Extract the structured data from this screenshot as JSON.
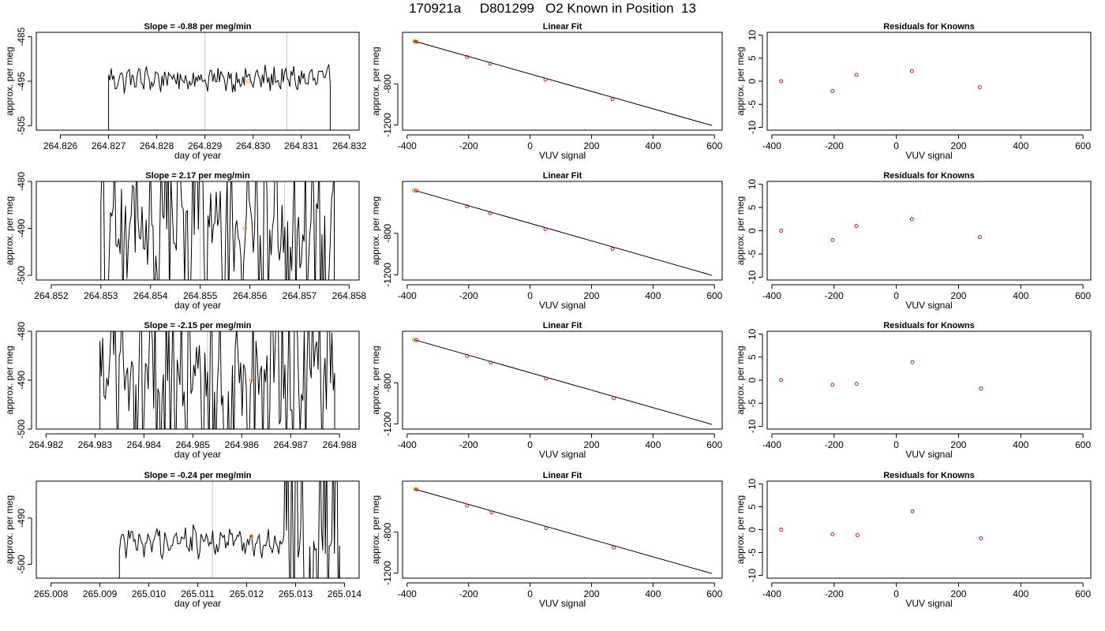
{
  "main_title": "170921a     D801299   O2 Known in Position  13",
  "chart_data": [
    {
      "type": "line",
      "title": "Slope =  -0.88  per meg/min",
      "xlabel": "day of year",
      "ylabel": "approx. per meg",
      "xlim": [
        264.8255,
        264.8322
      ],
      "ylim": [
        -506,
        -484
      ],
      "xticks": [
        "264.826",
        "264.827",
        "264.828",
        "264.829",
        "264.830",
        "264.831",
        "264.832"
      ],
      "yticks": [
        "-485",
        "-495",
        "-505"
      ],
      "vlines": [
        264.829,
        264.8307
      ],
      "highlight_point": [
        264.8299,
        -495.0
      ],
      "trace": {
        "x_start": 264.827,
        "x_end": 264.8316,
        "mean": -494.5,
        "amplitude": 2.2,
        "clip": true
      }
    },
    {
      "type": "scatter",
      "title": "Linear Fit",
      "xlabel": "VUV signal",
      "ylabel": "approx. per meg",
      "xlim": [
        -415,
        625
      ],
      "ylim": [
        -1250,
        -300
      ],
      "xticks": [
        "-400",
        "-200",
        "0",
        "200",
        "400",
        "600"
      ],
      "yticks": [
        "-800",
        "-1200"
      ],
      "points": [
        [
          -375,
          -388
        ],
        [
          -370,
          -392
        ],
        [
          -205,
          -540
        ],
        [
          -130,
          -605
        ],
        [
          50,
          -760
        ],
        [
          268,
          -950
        ]
      ],
      "highlight_points": [
        [
          -373,
          -388
        ]
      ],
      "fit_line": [
        [
          -375,
          -387
        ],
        [
          592,
          -1205
        ]
      ]
    },
    {
      "type": "scatter",
      "title": "Residuals for Knowns",
      "xlabel": "VUV signal",
      "ylabel": "approx. per meg",
      "xlim": [
        -415,
        625
      ],
      "ylim": [
        -10.6,
        10.6
      ],
      "xticks": [
        "-400",
        "-200",
        "0",
        "200",
        "400",
        "600"
      ],
      "yticks": [
        "10",
        "5",
        "0",
        "-5",
        "-10"
      ],
      "points": [
        [
          -370,
          0.0
        ],
        [
          -205,
          -2.1
        ],
        [
          -128,
          1.4
        ],
        [
          50,
          2.2
        ],
        [
          268,
          -1.3
        ]
      ]
    },
    {
      "type": "line",
      "title": "Slope =  2.17  per meg/min",
      "xlabel": "day of year",
      "ylabel": "approx. per meg",
      "xlim": [
        264.8517,
        264.8582
      ],
      "ylim": [
        -501,
        -480
      ],
      "xticks": [
        "264.852",
        "264.853",
        "264.854",
        "264.855",
        "264.856",
        "264.857",
        "264.858"
      ],
      "yticks": [
        "-480",
        "-490",
        "-500"
      ],
      "vlines": [
        264.855,
        264.8567
      ],
      "highlight_point": [
        264.8559,
        -490.0
      ],
      "trace": {
        "x_start": 264.853,
        "x_end": 264.8577,
        "mean": -490.0,
        "amplitude": 7.5,
        "clip": true
      }
    },
    {
      "type": "scatter",
      "title": "Linear Fit",
      "xlabel": "VUV signal",
      "ylabel": "approx. per meg",
      "xlim": [
        -415,
        625
      ],
      "ylim": [
        -1250,
        -300
      ],
      "xticks": [
        "-400",
        "-200",
        "0",
        "200",
        "400",
        "600"
      ],
      "yticks": [
        "-800",
        "-1200"
      ],
      "points": [
        [
          -378,
          -385
        ],
        [
          -370,
          -390
        ],
        [
          -205,
          -540
        ],
        [
          -130,
          -605
        ],
        [
          50,
          -760
        ],
        [
          268,
          -950
        ]
      ],
      "highlight_points": [
        [
          -378,
          -385
        ]
      ],
      "fit_line": [
        [
          -378,
          -384
        ],
        [
          592,
          -1205
        ]
      ]
    },
    {
      "type": "scatter",
      "title": "Residuals for Knowns",
      "xlabel": "VUV signal",
      "ylabel": "approx. per meg",
      "xlim": [
        -415,
        625
      ],
      "ylim": [
        -10.6,
        10.6
      ],
      "xticks": [
        "-400",
        "-200",
        "0",
        "200",
        "400",
        "600"
      ],
      "yticks": [
        "10",
        "5",
        "0",
        "-5",
        "-10"
      ],
      "points": [
        [
          -370,
          0.0
        ],
        [
          -205,
          -2.0
        ],
        [
          -128,
          1.0
        ],
        [
          50,
          2.5
        ],
        [
          268,
          -1.4
        ]
      ]
    },
    {
      "type": "line",
      "title": "Slope =  -2.15  per meg/min",
      "xlabel": "day of year",
      "ylabel": "approx. per meg",
      "xlim": [
        264.9818,
        264.9884
      ],
      "ylim": [
        -500,
        -480
      ],
      "xticks": [
        "264.982",
        "264.983",
        "264.984",
        "264.985",
        "264.986",
        "264.987",
        "264.988"
      ],
      "yticks": [
        "-480",
        "-490",
        "-500"
      ],
      "vlines": [
        264.9853
      ],
      "highlight_point": [
        264.9862,
        -490.0
      ],
      "trace": {
        "x_start": 264.9831,
        "x_end": 264.9879,
        "mean": -489.0,
        "amplitude": 8.0,
        "clip": true
      }
    },
    {
      "type": "scatter",
      "title": "Linear Fit",
      "xlabel": "VUV signal",
      "ylabel": "approx. per meg",
      "xlim": [
        -415,
        625
      ],
      "ylim": [
        -1250,
        -300
      ],
      "xticks": [
        "-400",
        "-200",
        "0",
        "200",
        "400",
        "600"
      ],
      "yticks": [
        "-800",
        "-1200"
      ],
      "points": [
        [
          -378,
          -382
        ],
        [
          -370,
          -387
        ],
        [
          -205,
          -540
        ],
        [
          -128,
          -605
        ],
        [
          52,
          -760
        ],
        [
          272,
          -950
        ]
      ],
      "highlight_points": [
        [
          -378,
          -382
        ]
      ],
      "fit_line": [
        [
          -378,
          -381
        ],
        [
          592,
          -1205
        ]
      ]
    },
    {
      "type": "scatter",
      "title": "Residuals for Knowns",
      "xlabel": "VUV signal",
      "ylabel": "approx. per meg",
      "xlim": [
        -415,
        625
      ],
      "ylim": [
        -10.6,
        10.6
      ],
      "xticks": [
        "-400",
        "-200",
        "0",
        "200",
        "400",
        "600"
      ],
      "yticks": [
        "10",
        "5",
        "0",
        "-5",
        "-10"
      ],
      "points": [
        [
          -370,
          0.0
        ],
        [
          -205,
          -1.0
        ],
        [
          -128,
          -0.8
        ],
        [
          52,
          3.9
        ],
        [
          272,
          -1.8
        ]
      ]
    },
    {
      "type": "line",
      "title": "Slope =  -0.24  per meg/min",
      "xlabel": "day of year",
      "ylabel": "approx. per meg",
      "xlim": [
        265.0077,
        265.0143
      ],
      "ylim": [
        -503,
        -482
      ],
      "xticks": [
        "265.008",
        "265.009",
        "265.010",
        "265.011",
        "265.012",
        "265.013",
        "265.014"
      ],
      "yticks": [
        "-490",
        "-500"
      ],
      "vlines": [
        265.0113
      ],
      "highlight_point": [
        265.0121,
        -494.0
      ],
      "trace": {
        "x_start": 265.0094,
        "x_end": 265.0139,
        "mean": -495.0,
        "amplitude": 2.5,
        "clip": true
      }
    },
    {
      "type": "scatter",
      "title": "Linear Fit",
      "xlabel": "VUV signal",
      "ylabel": "approx. per meg",
      "xlim": [
        -415,
        625
      ],
      "ylim": [
        -1250,
        -300
      ],
      "xticks": [
        "-400",
        "-200",
        "0",
        "200",
        "400",
        "600"
      ],
      "yticks": [
        "-800",
        "-1200"
      ],
      "points": [
        [
          -373,
          -380
        ],
        [
          -370,
          -383
        ],
        [
          -205,
          -540
        ],
        [
          -125,
          -605
        ],
        [
          52,
          -760
        ],
        [
          272,
          -950
        ]
      ],
      "highlight_points": [
        [
          -373,
          -380
        ]
      ],
      "fit_line": [
        [
          -373,
          -380
        ],
        [
          592,
          -1205
        ]
      ]
    },
    {
      "type": "scatter",
      "title": "Residuals for Knowns",
      "xlabel": "VUV signal",
      "ylabel": "approx. per meg",
      "xlim": [
        -415,
        625
      ],
      "ylim": [
        -10.6,
        10.6
      ],
      "xticks": [
        "-400",
        "-200",
        "0",
        "200",
        "400",
        "600"
      ],
      "yticks": [
        "10",
        "5",
        "0",
        "-5",
        "-10"
      ],
      "points": [
        [
          -370,
          0.0
        ],
        [
          -205,
          -1.0
        ],
        [
          -125,
          -1.2
        ],
        [
          52,
          4.0
        ],
        [
          272,
          -1.9
        ]
      ]
    }
  ],
  "colors": {
    "axis": "#000000",
    "trace": "#000000",
    "vline": "#c8c8c8",
    "point": "#cc0000",
    "highlight": "#ff9900",
    "fit_line": "#000000"
  }
}
